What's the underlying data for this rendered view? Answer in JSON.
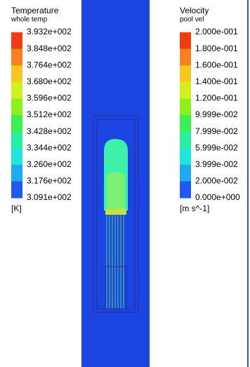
{
  "legends": [
    {
      "title": "Temperature",
      "subtitle": "whole temp",
      "labels": [
        "3.932e+002",
        "3.848e+002",
        "3.764e+002",
        "3.680e+002",
        "3.596e+002",
        "3.512e+002",
        "3.428e+002",
        "3.344e+002",
        "3.260e+002",
        "3.176e+002",
        "3.091e+002"
      ],
      "unit": "[K]"
    },
    {
      "title": "Velocity",
      "subtitle": "pool vel",
      "labels": [
        "2.000e-001",
        "1.800e-001",
        "1.600e-001",
        "1.400e-001",
        "1.200e-001",
        "9.999e-002",
        "7.999e-002",
        "5.999e-002",
        "3.999e-002",
        "2.000e-002",
        "0.000e+000"
      ],
      "unit": "[m s^-1]"
    }
  ]
}
